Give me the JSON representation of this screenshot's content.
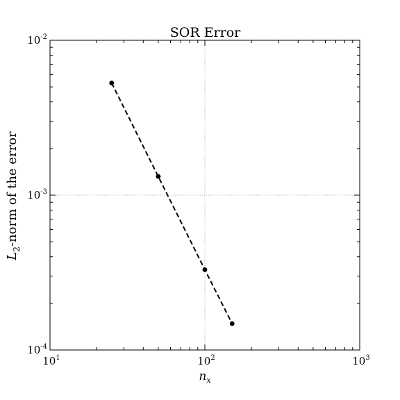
{
  "chart_data": {
    "type": "line",
    "title": "SOR Error",
    "xlabel_base": "n",
    "xlabel_sub": "x",
    "ylabel_prefix": "L",
    "ylabel_sub": "2",
    "ylabel_rest": "-norm of the error",
    "xscale": "log",
    "yscale": "log",
    "xlim": [
      10,
      1000
    ],
    "ylim": [
      0.0001,
      0.01
    ],
    "grid": true,
    "x_ticks": [
      {
        "value": 10,
        "base": "10",
        "exp": "1"
      },
      {
        "value": 100,
        "base": "10",
        "exp": "2"
      },
      {
        "value": 1000,
        "base": "10",
        "exp": "3"
      }
    ],
    "y_ticks": [
      {
        "value": 0.0001,
        "base": "10",
        "exp": "-4"
      },
      {
        "value": 0.001,
        "base": "10",
        "exp": "-3"
      },
      {
        "value": 0.01,
        "base": "10",
        "exp": "-2"
      }
    ],
    "series": [
      {
        "x": [
          25,
          50,
          100,
          150
        ],
        "y": [
          0.0053,
          0.00132,
          0.00033,
          0.000148
        ],
        "color": "#000000",
        "line_style": "dashed",
        "marker": "circle"
      }
    ]
  }
}
